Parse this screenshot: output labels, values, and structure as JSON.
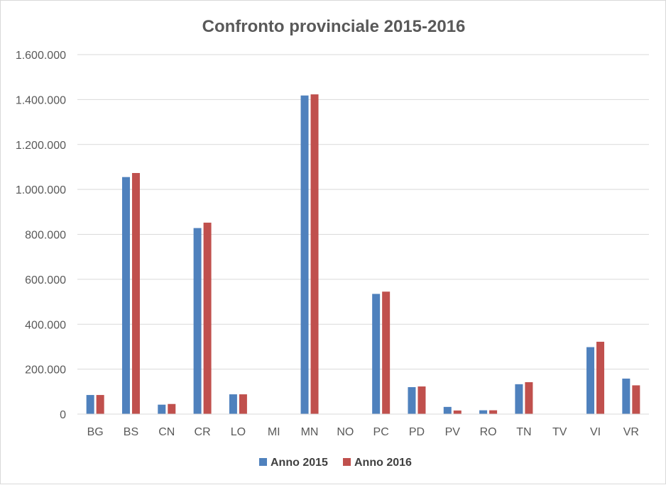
{
  "chart_data": {
    "type": "bar",
    "title": "Confronto provinciale 2015-2016",
    "xlabel": "",
    "ylabel": "",
    "ylim": [
      0,
      1600000
    ],
    "y_ticks": [
      "0",
      "200.000",
      "400.000",
      "600.000",
      "800.000",
      "1.000.000",
      "1.200.000",
      "1.400.000",
      "1.600.000"
    ],
    "grid": true,
    "legend_position": "bottom",
    "categories": [
      "BG",
      "BS",
      "CN",
      "CR",
      "LO",
      "MI",
      "MN",
      "NO",
      "PC",
      "PD",
      "PV",
      "RO",
      "TN",
      "TV",
      "VI",
      "VR"
    ],
    "series": [
      {
        "name": "Anno 2015",
        "color": "#4f81bd",
        "values": [
          85000,
          1055000,
          42000,
          828000,
          88000,
          0,
          1418000,
          0,
          535000,
          120000,
          32000,
          17000,
          133000,
          0,
          298000,
          158000
        ]
      },
      {
        "name": "Anno 2016",
        "color": "#c0504d",
        "values": [
          85000,
          1073000,
          45000,
          852000,
          88000,
          0,
          1423000,
          0,
          545000,
          123000,
          16000,
          17000,
          142000,
          0,
          322000,
          128000
        ]
      }
    ]
  }
}
